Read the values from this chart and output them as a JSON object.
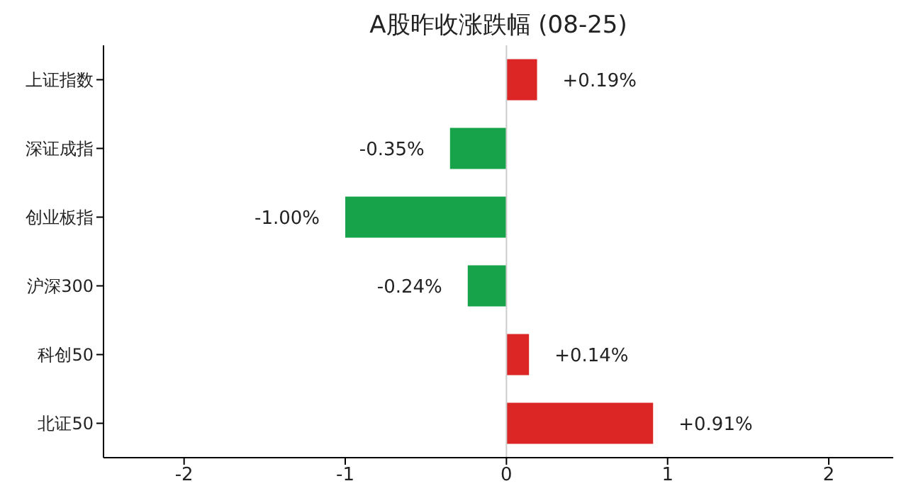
{
  "chart_data": {
    "type": "bar",
    "orientation": "horizontal",
    "title": "A股昨收涨跌幅 (08-25)",
    "categories": [
      "上证指数",
      "深证成指",
      "创业板指",
      "沪深300",
      "科创50",
      "北证50"
    ],
    "values": [
      0.19,
      -0.35,
      -1.0,
      -0.24,
      0.14,
      0.91
    ],
    "colors": [
      "#dc2626",
      "#16a34a",
      "#16a34a",
      "#16a34a",
      "#dc2626",
      "#dc2626"
    ],
    "value_labels": [
      "+0.19%",
      "-0.35%",
      "-1.00%",
      "-0.24%",
      "+0.14%",
      "+0.91%"
    ],
    "xlim": [
      -2.5,
      2.4
    ],
    "xticks": [
      -2,
      -1,
      0,
      1,
      2
    ],
    "ref_lines": [
      {
        "axis": "x",
        "value": 0,
        "color": "#cccccc"
      }
    ],
    "grid": false,
    "legend": false
  }
}
